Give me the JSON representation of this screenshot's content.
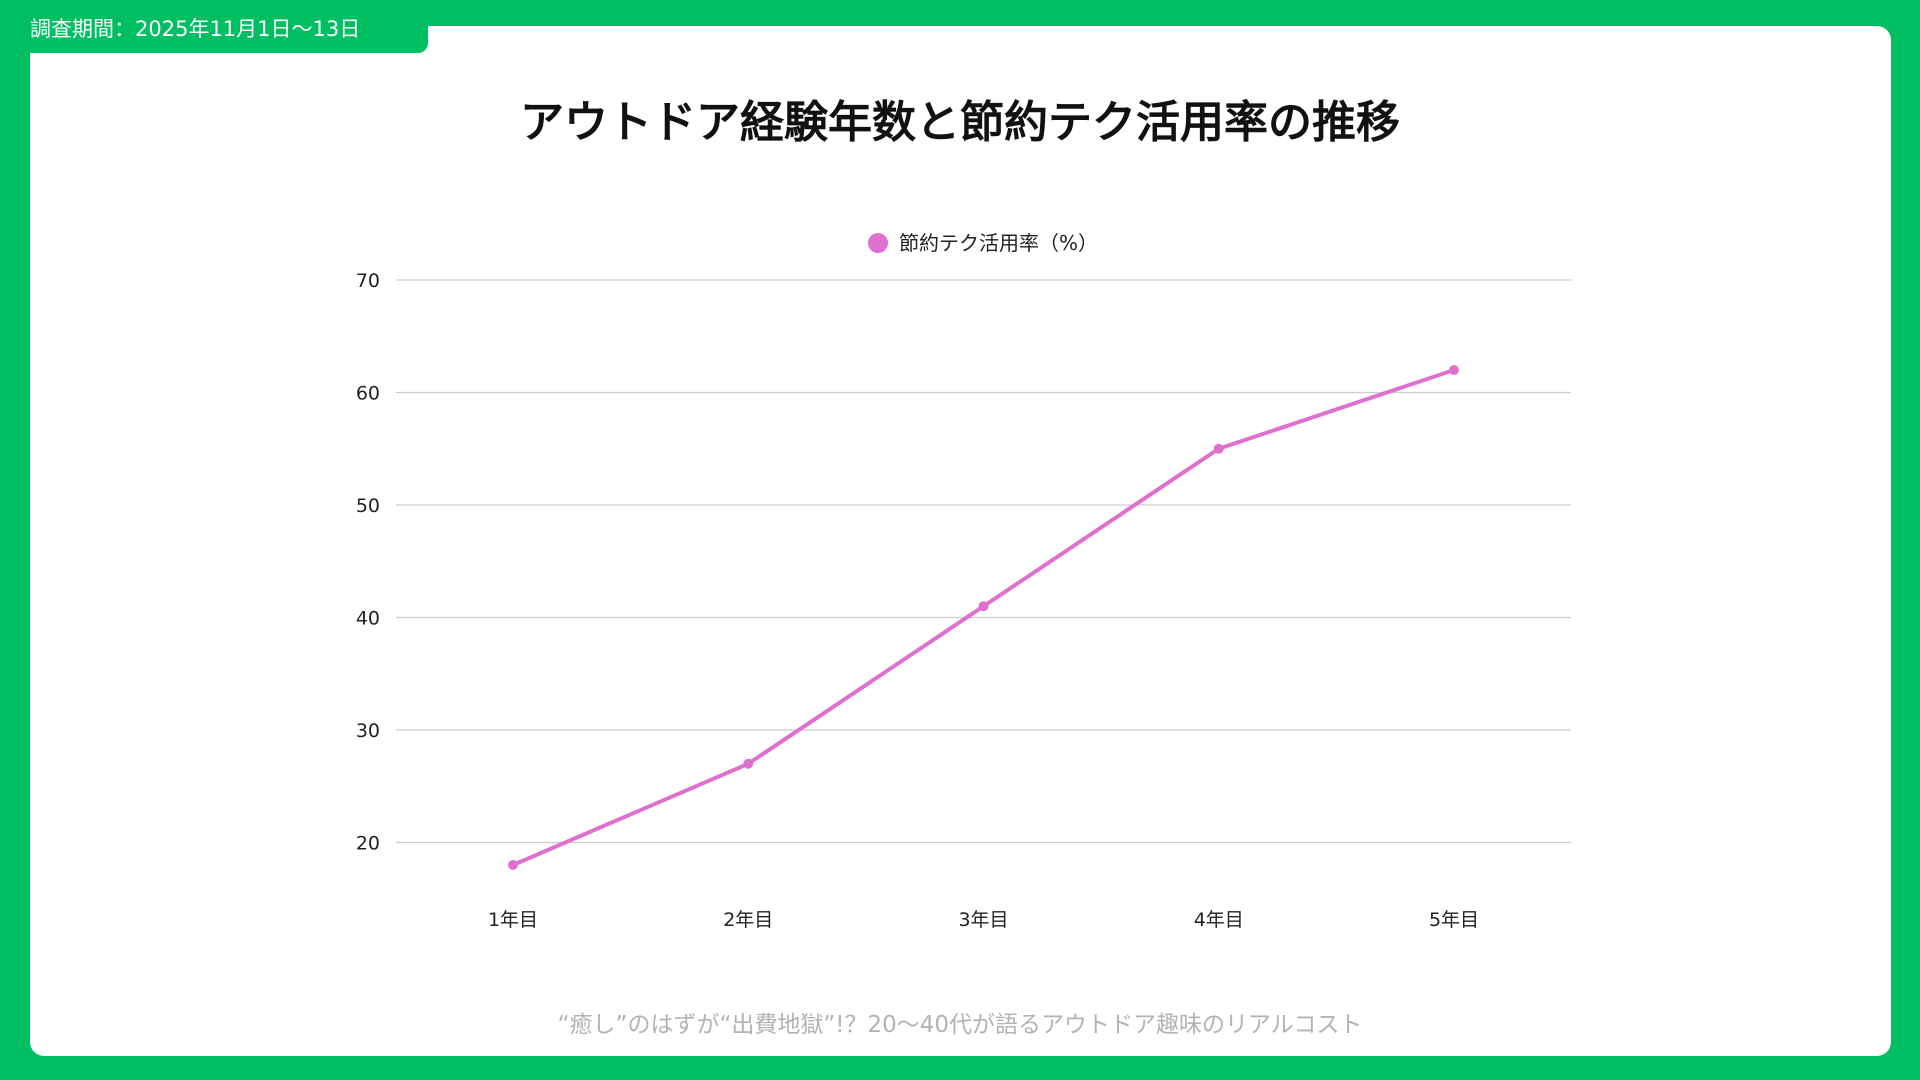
{
  "header": {
    "survey_period": "調査期間：2025年11月1日〜13日"
  },
  "footer": {
    "caption": "“癒し”のはずが“出費地獄”!？20〜40代が語るアウトドア趣味のリアルコスト"
  },
  "colors": {
    "background": "#00bf63",
    "card": "#ffffff",
    "series": "#e070d0",
    "grid": "#cccccc"
  },
  "chart_data": {
    "type": "line",
    "title": "アウトドア経験年数と節約テク活用率の推移",
    "xlabel": "",
    "ylabel": "",
    "categories": [
      "1年目",
      "2年目",
      "3年目",
      "4年目",
      "5年目"
    ],
    "series": [
      {
        "name": "節約テク活用率（%）",
        "values": [
          18,
          27,
          41,
          55,
          62
        ]
      }
    ],
    "ylim": [
      15,
      70
    ],
    "yticks": [
      20,
      30,
      40,
      50,
      60,
      70
    ],
    "grid": true,
    "legend": "top-center"
  }
}
